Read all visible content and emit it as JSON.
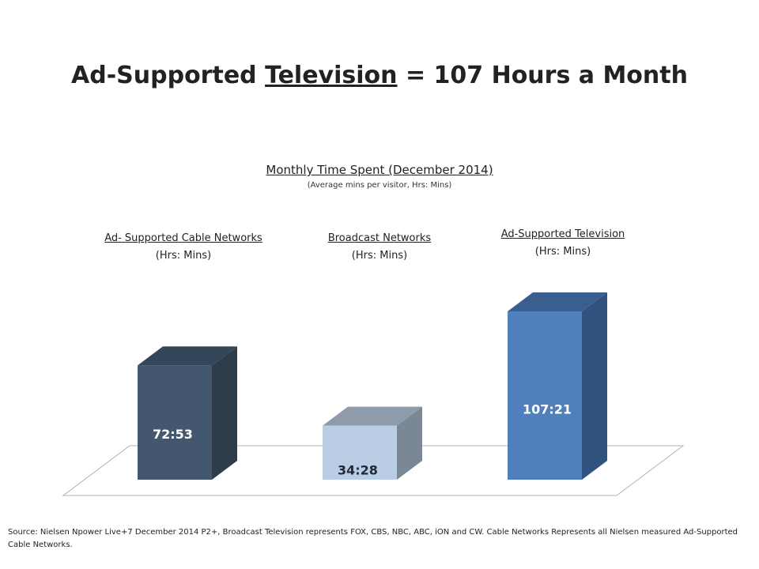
{
  "title": {
    "part1": "Ad-Supported ",
    "underlined": "Television",
    "part2": " = 107 Hours a Month"
  },
  "subtitle": "Monthly Time Spent (December 2014)",
  "subnote": "(Average mins per visitor, Hrs: Mins)",
  "source": "Source: Nielsen Npower Live+7 December 2014 P2+, Broadcast Television represents FOX, CBS, NBC, ABC, iON and CW. Cable Networks Represents all Nielsen measured Ad-Supported Cable Networks.",
  "chart_data": {
    "type": "bar",
    "title": "Monthly Time Spent (December 2014)",
    "categories": [
      "Ad- Supported Cable Networks",
      "Broadcast Networks",
      "Ad-Supported Television"
    ],
    "category_units": [
      "(Hrs: Mins)",
      "(Hrs: Mins)",
      "(Hrs: Mins)"
    ],
    "labels": [
      "72:53",
      "34:28",
      "107:21"
    ],
    "values": [
      72.883,
      34.467,
      107.35
    ],
    "colors": [
      {
        "front": "#43586f",
        "side": "#2e3c4c",
        "top": "#34465a"
      },
      {
        "front": "#b9cde4",
        "side": "#7a8896",
        "top": "#8e9bab"
      },
      {
        "front": "#4f80bc",
        "side": "#315380",
        "top": "#3a5f8f"
      }
    ],
    "ylim": [
      0,
      107.35
    ],
    "grid": false,
    "legend": "none"
  }
}
